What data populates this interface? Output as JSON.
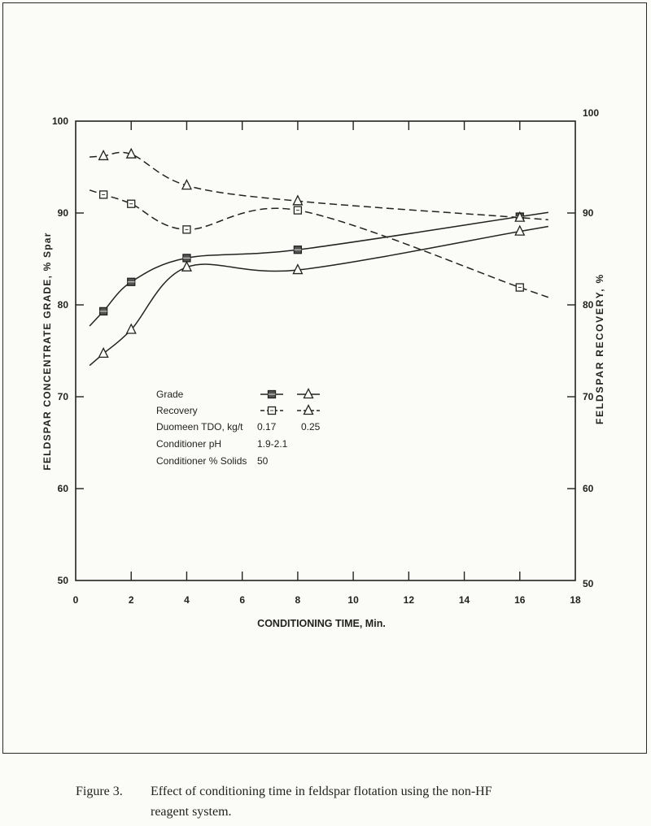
{
  "chart_data": {
    "type": "line",
    "title": "",
    "xlabel": "CONDITIONING TIME, Min.",
    "ylabel": "FELDSPAR CONCENTRATE GRADE, % Spar",
    "ylabel_right": "FELDSPAR RECOVERY, %",
    "xlim": [
      0,
      18
    ],
    "ylim": [
      50,
      100
    ],
    "ylim_right": [
      50,
      100
    ],
    "x_ticks": [
      "0",
      "2",
      "4",
      "6",
      "8",
      "10",
      "12",
      "14",
      "16",
      "18"
    ],
    "y_ticks": [
      "50",
      "60",
      "70",
      "80",
      "90",
      "100"
    ],
    "y_ticks_right": [
      "50",
      "60",
      "70",
      "80",
      "90",
      "100"
    ],
    "grid": false,
    "series": [
      {
        "name": "Grade, 0.17",
        "marker": "square-filled",
        "linestyle": "solid",
        "x": [
          1,
          2,
          4,
          8,
          16
        ],
        "y": [
          79.3,
          82.5,
          85.1,
          86.0,
          89.6
        ]
      },
      {
        "name": "Grade, 0.25",
        "marker": "triangle",
        "linestyle": "solid",
        "x": [
          1,
          2,
          4,
          8,
          16
        ],
        "y": [
          74.7,
          77.3,
          84.1,
          83.8,
          88.0
        ]
      },
      {
        "name": "Recovery, 0.17",
        "marker": "square-open",
        "linestyle": "dashed",
        "x": [
          1,
          2,
          4,
          8,
          16
        ],
        "y": [
          92.0,
          91.0,
          88.2,
          90.3,
          81.9
        ]
      },
      {
        "name": "Recovery, 0.25",
        "marker": "triangle",
        "linestyle": "dashed",
        "x": [
          1,
          2,
          4,
          8,
          16
        ],
        "y": [
          96.2,
          96.4,
          93.0,
          91.3,
          89.5
        ]
      }
    ],
    "legend": {
      "placement": "center-left",
      "rows": [
        {
          "label": "Grade",
          "col1": "",
          "col2": ""
        },
        {
          "label": "Recovery",
          "col1": "",
          "col2": ""
        },
        {
          "label": "Duomeen TDO, kg/t",
          "col1": "0.17",
          "col2": "0.25"
        },
        {
          "label": "Conditioner pH",
          "col1": "1.9-2.1",
          "col2": ""
        },
        {
          "label": "Conditioner % Solids",
          "col1": "50",
          "col2": ""
        }
      ]
    }
  },
  "caption": {
    "figure": "Figure 3.",
    "line1": "Effect of conditioning time in feldspar flotation using the non-HF",
    "line2": "reagent system."
  }
}
